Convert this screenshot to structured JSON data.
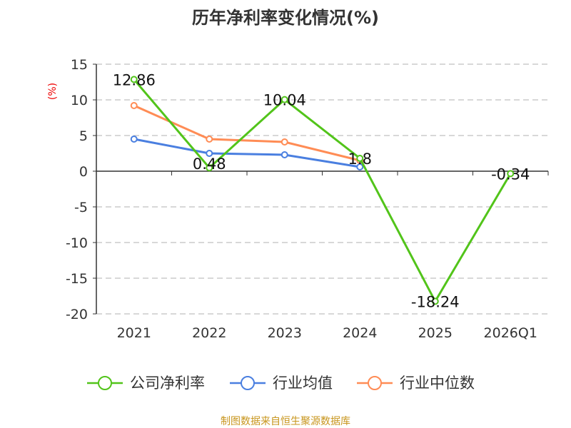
{
  "chart_data": {
    "type": "line",
    "title": "历年净利率变化情况(%)",
    "ylabel": "(%)",
    "xlabel": "",
    "categories": [
      "2021",
      "2022",
      "2023",
      "2024",
      "2025",
      "2026Q1"
    ],
    "ylim": [
      -20,
      15
    ],
    "yticks": [
      15,
      10,
      5,
      0,
      -5,
      -10,
      -15,
      -20
    ],
    "grid": true,
    "legend_position": "bottom",
    "series": [
      {
        "name": "公司净利率",
        "color": "#52c41a",
        "values": [
          12.86,
          0.48,
          10.04,
          1.8,
          -18.24,
          -0.34
        ],
        "labels": [
          "12.86",
          "0.48",
          "10.04",
          "1.8",
          "-18.24",
          "-0.34"
        ]
      },
      {
        "name": "行业均值",
        "color": "#4a7fe0",
        "values": [
          4.5,
          2.5,
          2.3,
          0.6,
          null,
          null
        ]
      },
      {
        "name": "行业中位数",
        "color": "#ff8c55",
        "values": [
          9.2,
          4.5,
          4.1,
          1.5,
          null,
          null
        ]
      }
    ],
    "source": "制图数据来自恒生聚源数据库"
  }
}
